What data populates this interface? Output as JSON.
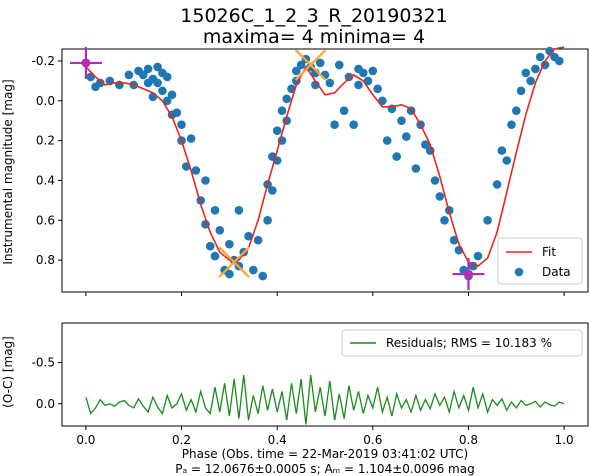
{
  "chart_data": [
    {
      "type": "scatter",
      "title": "15026C_1_2_3_R_20190321",
      "subtitle": "maxima= 4  minima= 4",
      "ylabel": "Instrumental magnitude [mag]",
      "xlim": [
        -0.05,
        1.05
      ],
      "ylim": [
        0.96,
        -0.26
      ],
      "y_inverted": true,
      "y_ticks": [
        "-0.2",
        "0.0",
        "0.2",
        "0.4",
        "0.6",
        "0.8"
      ],
      "y_tick_values": [
        -0.2,
        0.0,
        0.2,
        0.4,
        0.6,
        0.8
      ],
      "x_tick_values": [
        0.0,
        0.2,
        0.4,
        0.6,
        0.8,
        1.0
      ],
      "legend_position": "bottom-right",
      "series": [
        {
          "name": "Fit",
          "kind": "line",
          "color": "#e8261f",
          "x": [
            0.0,
            0.02,
            0.04,
            0.06,
            0.08,
            0.1,
            0.12,
            0.14,
            0.16,
            0.18,
            0.2,
            0.22,
            0.24,
            0.26,
            0.28,
            0.3,
            0.32,
            0.34,
            0.36,
            0.38,
            0.4,
            0.42,
            0.44,
            0.46,
            0.48,
            0.5,
            0.52,
            0.54,
            0.56,
            0.58,
            0.6,
            0.62,
            0.64,
            0.66,
            0.68,
            0.7,
            0.72,
            0.74,
            0.76,
            0.78,
            0.8,
            0.82,
            0.84,
            0.86,
            0.88,
            0.9,
            0.92,
            0.94,
            0.96,
            0.98,
            1.0
          ],
          "y": [
            -0.17,
            -0.12,
            -0.08,
            -0.09,
            -0.09,
            -0.08,
            -0.06,
            -0.04,
            0.0,
            0.08,
            0.2,
            0.35,
            0.52,
            0.66,
            0.76,
            0.8,
            0.8,
            0.74,
            0.6,
            0.42,
            0.25,
            0.08,
            -0.08,
            -0.17,
            -0.1,
            -0.03,
            -0.04,
            -0.09,
            -0.13,
            -0.1,
            -0.03,
            0.03,
            0.03,
            0.02,
            0.04,
            0.12,
            0.22,
            0.38,
            0.56,
            0.72,
            0.81,
            0.83,
            0.79,
            0.66,
            0.46,
            0.26,
            0.07,
            -0.09,
            -0.2,
            -0.26,
            -0.27
          ]
        },
        {
          "name": "Data",
          "kind": "points",
          "color": "#1f77b4",
          "x": [
            0.01,
            0.02,
            0.03,
            0.05,
            0.07,
            0.09,
            0.1,
            0.11,
            0.12,
            0.13,
            0.13,
            0.14,
            0.14,
            0.15,
            0.15,
            0.16,
            0.16,
            0.17,
            0.17,
            0.18,
            0.18,
            0.19,
            0.2,
            0.2,
            0.21,
            0.22,
            0.23,
            0.24,
            0.25,
            0.25,
            0.26,
            0.27,
            0.27,
            0.28,
            0.29,
            0.3,
            0.3,
            0.31,
            0.32,
            0.32,
            0.33,
            0.34,
            0.35,
            0.36,
            0.37,
            0.38,
            0.38,
            0.39,
            0.39,
            0.4,
            0.4,
            0.41,
            0.41,
            0.42,
            0.42,
            0.43,
            0.44,
            0.44,
            0.45,
            0.46,
            0.47,
            0.48,
            0.48,
            0.49,
            0.5,
            0.51,
            0.52,
            0.53,
            0.54,
            0.55,
            0.56,
            0.57,
            0.57,
            0.58,
            0.59,
            0.6,
            0.61,
            0.62,
            0.63,
            0.64,
            0.65,
            0.66,
            0.67,
            0.68,
            0.69,
            0.7,
            0.71,
            0.72,
            0.73,
            0.74,
            0.75,
            0.76,
            0.77,
            0.78,
            0.79,
            0.8,
            0.81,
            0.82,
            0.84,
            0.86,
            0.87,
            0.88,
            0.89,
            0.9,
            0.91,
            0.92,
            0.93,
            0.94,
            0.95,
            0.96,
            0.97,
            0.98,
            0.99
          ],
          "y": [
            -0.12,
            -0.07,
            -0.09,
            -0.1,
            -0.08,
            -0.13,
            -0.08,
            -0.15,
            -0.13,
            -0.09,
            -0.16,
            -0.11,
            -0.02,
            -0.17,
            -0.09,
            -0.14,
            -0.05,
            -0.12,
            0.0,
            -0.03,
            0.07,
            0.06,
            0.12,
            0.2,
            0.33,
            0.19,
            0.35,
            0.5,
            0.4,
            0.62,
            0.73,
            0.55,
            0.78,
            0.65,
            0.85,
            0.72,
            0.87,
            0.8,
            0.83,
            0.55,
            0.76,
            0.68,
            0.85,
            0.7,
            0.88,
            0.42,
            0.6,
            0.28,
            0.45,
            0.15,
            0.3,
            0.05,
            0.2,
            -0.01,
            0.1,
            -0.06,
            -0.15,
            -0.1,
            -0.18,
            -0.21,
            -0.17,
            -0.14,
            -0.08,
            -0.19,
            -0.13,
            -0.09,
            0.12,
            -0.18,
            0.05,
            -0.12,
            0.12,
            -0.16,
            -0.08,
            -0.14,
            -0.1,
            -0.15,
            -0.06,
            0.0,
            0.2,
            0.04,
            0.28,
            0.1,
            0.18,
            0.05,
            0.34,
            0.12,
            0.22,
            0.25,
            0.4,
            0.48,
            0.6,
            0.55,
            0.7,
            0.75,
            0.85,
            0.88,
            0.83,
            0.78,
            0.6,
            0.42,
            0.25,
            0.3,
            0.12,
            0.05,
            -0.05,
            -0.14,
            -0.1,
            -0.16,
            -0.22,
            -0.18,
            -0.25,
            -0.22,
            -0.2
          ]
        }
      ],
      "maxima_markers": [
        {
          "x": 0.0,
          "y": -0.19,
          "style": "plus",
          "color": "#b22cb6"
        },
        {
          "x": 0.47,
          "y": -0.18,
          "style": "x",
          "color": "#ffa62b"
        }
      ],
      "minima_markers": [
        {
          "x": 0.31,
          "y": 0.81,
          "style": "x",
          "color": "#ffa62b"
        },
        {
          "x": 0.8,
          "y": 0.87,
          "style": "plus",
          "color": "#b22cb6"
        }
      ]
    },
    {
      "type": "line",
      "ylabel": "(O-C) [mag]",
      "xlabel": "Phase (Obs. time = 22-Mar-2019 03:41:02 UTC)",
      "footer_text": "Pₐ = 12.0676±0.0005 s;  Aₘ = 1.104±0.0096 mag",
      "xlim": [
        -0.05,
        1.05
      ],
      "ylim": [
        0.27,
        -0.98
      ],
      "y_inverted": true,
      "y_ticks": [
        "-0.5",
        "0.0"
      ],
      "y_tick_values": [
        -0.5,
        0.0
      ],
      "x_ticks": [
        "0.0",
        "0.2",
        "0.4",
        "0.6",
        "0.8",
        "1.0"
      ],
      "x_tick_values": [
        0.0,
        0.2,
        0.4,
        0.6,
        0.8,
        1.0
      ],
      "legend_position": "top-right",
      "series": [
        {
          "name": "Residuals; RMS = 10.183 %",
          "color": "#1a8c1a",
          "x": [
            0.0,
            0.01,
            0.02,
            0.03,
            0.04,
            0.05,
            0.06,
            0.07,
            0.08,
            0.09,
            0.1,
            0.11,
            0.12,
            0.13,
            0.14,
            0.15,
            0.16,
            0.17,
            0.18,
            0.19,
            0.2,
            0.21,
            0.22,
            0.23,
            0.24,
            0.25,
            0.26,
            0.27,
            0.28,
            0.29,
            0.3,
            0.31,
            0.32,
            0.33,
            0.34,
            0.35,
            0.36,
            0.37,
            0.38,
            0.39,
            0.4,
            0.41,
            0.42,
            0.43,
            0.44,
            0.45,
            0.46,
            0.47,
            0.48,
            0.49,
            0.5,
            0.51,
            0.52,
            0.53,
            0.54,
            0.55,
            0.56,
            0.57,
            0.58,
            0.59,
            0.6,
            0.61,
            0.62,
            0.63,
            0.64,
            0.65,
            0.66,
            0.67,
            0.68,
            0.69,
            0.7,
            0.71,
            0.72,
            0.73,
            0.74,
            0.75,
            0.76,
            0.77,
            0.78,
            0.79,
            0.8,
            0.81,
            0.82,
            0.83,
            0.84,
            0.85,
            0.86,
            0.87,
            0.88,
            0.89,
            0.9,
            0.91,
            0.92,
            0.93,
            0.94,
            0.95,
            0.96,
            0.97,
            0.98,
            0.99,
            1.0
          ],
          "y": [
            -0.08,
            0.12,
            0.05,
            -0.05,
            0.02,
            0.0,
            0.03,
            -0.02,
            -0.04,
            0.02,
            0.05,
            -0.06,
            0.03,
            0.1,
            -0.08,
            0.04,
            0.12,
            -0.1,
            0.05,
            0.0,
            -0.12,
            0.08,
            -0.05,
            0.1,
            -0.15,
            0.05,
            0.12,
            -0.2,
            0.1,
            -0.25,
            0.15,
            -0.3,
            0.18,
            -0.35,
            0.2,
            -0.1,
            0.12,
            -0.22,
            0.08,
            -0.18,
            0.1,
            -0.15,
            0.2,
            -0.25,
            0.12,
            -0.3,
            0.25,
            -0.35,
            0.1,
            -0.2,
            0.15,
            -0.28,
            0.2,
            -0.12,
            0.18,
            -0.22,
            0.08,
            -0.15,
            0.12,
            -0.1,
            0.05,
            -0.2,
            0.1,
            -0.08,
            0.15,
            -0.12,
            0.05,
            -0.05,
            0.1,
            -0.1,
            0.08,
            -0.05,
            0.06,
            -0.12,
            0.02,
            -0.08,
            0.1,
            -0.15,
            0.05,
            -0.1,
            0.08,
            -0.2,
            0.05,
            -0.12,
            0.1,
            -0.05,
            0.02,
            -0.06,
            0.08,
            -0.02,
            0.05,
            -0.04,
            0.02,
            0.0,
            -0.03,
            0.04,
            -0.02,
            0.01,
            0.03,
            -0.02,
            0.0
          ]
        }
      ]
    }
  ]
}
